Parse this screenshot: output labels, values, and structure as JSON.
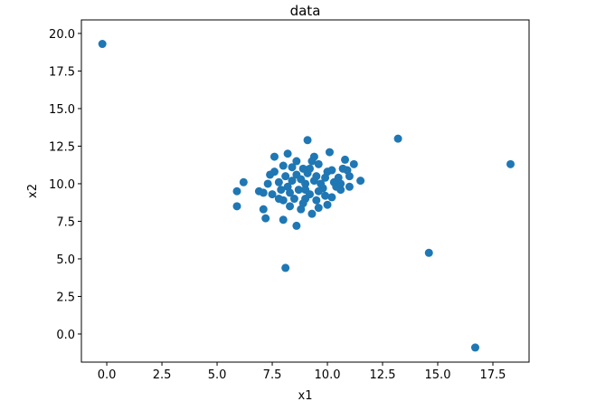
{
  "chart_data": {
    "type": "scatter",
    "title": "data",
    "x_label": "x1",
    "y_label": "x2",
    "color": "#1f77b4",
    "xlim": [
      -1.15,
      19.14
    ],
    "ylim": [
      -1.87,
      20.9
    ],
    "xticks": [
      {
        "value": 0,
        "label": "0.0"
      },
      2.5,
      {
        "value": 5,
        "label": "5.0"
      },
      7.5,
      {
        "value": 10,
        "label": "10.0"
      },
      12.5,
      {
        "value": 15,
        "label": "15.0"
      },
      17.5
    ],
    "yticks": [
      {
        "value": 0,
        "label": "0.0"
      },
      2.5,
      {
        "value": 5,
        "label": "5.0"
      },
      7.5,
      {
        "value": 10,
        "label": "10.0"
      },
      12.5,
      {
        "value": 15,
        "label": "15.0"
      },
      17.5,
      {
        "value": 20,
        "label": "20.0"
      }
    ],
    "x": [
      -0.2,
      13.2,
      18.3,
      14.6,
      16.7,
      8.1,
      5.9,
      5.9,
      6.2,
      7.1,
      7.2,
      8.0,
      8.6,
      11.5,
      9.1,
      8.2,
      7.6,
      9.0,
      9.5,
      8.7,
      10.0,
      9.2,
      8.4,
      10.3,
      9.8,
      8.9,
      9.6,
      7.4,
      7.8,
      7.5,
      8.0,
      8.3,
      8.8,
      9.3,
      9.6,
      10.2,
      10.6,
      11.0,
      11.2,
      10.8,
      10.1,
      9.4,
      8.6,
      8.0,
      7.3,
      7.1,
      6.9,
      8.2,
      8.5,
      9.0,
      9.9,
      10.5,
      10.9,
      9.7,
      9.1,
      8.6,
      8.1,
      7.6,
      7.8,
      8.9,
      10.0,
      10.4,
      11.0,
      10.7,
      9.3,
      8.4,
      9.6,
      9.4,
      8.8,
      9.9,
      10.2,
      9.2,
      8.3,
      7.9,
      10.6,
      9.5,
      9.0
    ],
    "y": [
      19.3,
      13.0,
      11.3,
      5.4,
      -0.9,
      4.4,
      9.5,
      8.5,
      10.1,
      8.3,
      7.7,
      7.6,
      7.2,
      10.2,
      12.9,
      12.0,
      11.8,
      10.0,
      10.5,
      9.6,
      10.8,
      9.3,
      10.2,
      10.1,
      9.7,
      11.0,
      11.3,
      10.6,
      10.1,
      9.3,
      8.9,
      8.5,
      8.3,
      8.0,
      8.4,
      9.1,
      9.6,
      9.8,
      11.3,
      11.6,
      12.1,
      11.8,
      11.5,
      11.2,
      10.0,
      9.4,
      9.5,
      9.8,
      9.0,
      9.0,
      9.2,
      10.4,
      10.9,
      10.0,
      10.7,
      10.6,
      10.5,
      10.8,
      9.0,
      8.7,
      8.6,
      9.8,
      10.5,
      11.0,
      11.5,
      11.1,
      9.5,
      10.2,
      10.3,
      10.4,
      10.9,
      11.0,
      9.4,
      9.6,
      10.0,
      8.9,
      9.6
    ]
  }
}
